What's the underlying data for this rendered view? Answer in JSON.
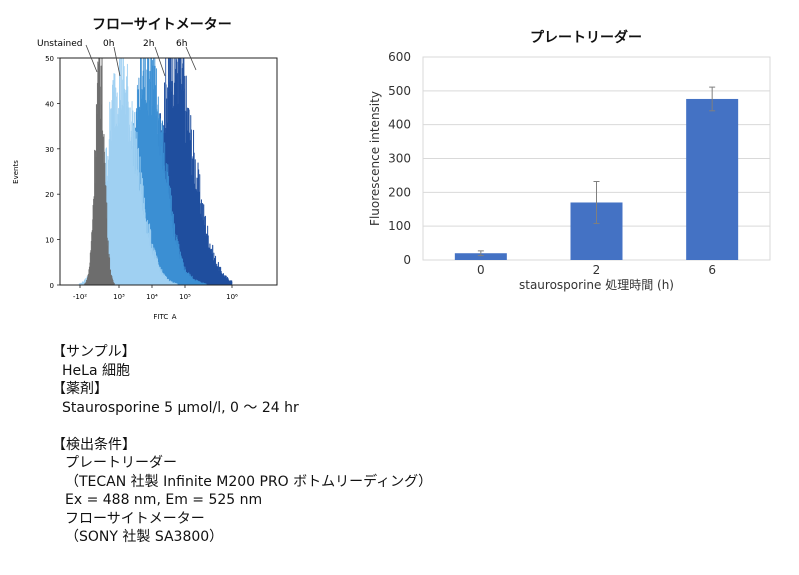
{
  "flow": {
    "title": "フローサイトメーター",
    "peak_labels": [
      "Unstained",
      "0h",
      "2h",
      "6h"
    ],
    "y_axis_label": "Events",
    "x_axis_label": "FITC_A",
    "y_ticks": [
      "0",
      "10",
      "20",
      "30",
      "40",
      "50"
    ],
    "x_ticks": [
      "-10²",
      "10³",
      "10⁴",
      "10⁵",
      "10⁶"
    ],
    "colors": {
      "Unstained": "#6d6d6d",
      "0h": "#9fd0f2",
      "2h": "#3b8fd3",
      "6h": "#1f4e9e"
    }
  },
  "plate": {
    "title": "プレートリーダー",
    "ylabel": "Fluorescence intensity",
    "xlabel": "staurosporine 処理時間 (h)"
  },
  "chart_data": [
    {
      "type": "area",
      "title": "フローサイトメーター",
      "xlabel": "FITC_A",
      "ylabel": "Events",
      "x_scale": "log",
      "x_ticks": [
        "-10²",
        "10³",
        "10⁴",
        "10⁵",
        "10⁶"
      ],
      "ylim": [
        0,
        50
      ],
      "series": [
        {
          "name": "Unstained",
          "color": "#6d6d6d",
          "peak_log10": 2.5,
          "peak_events": 47
        },
        {
          "name": "0h",
          "color": "#9fd0f2",
          "peak_log10": 3.0,
          "peak_events": 45
        },
        {
          "name": "2h",
          "color": "#3b8fd3",
          "peak_log10": 3.85,
          "peak_events": 48
        },
        {
          "name": "6h",
          "color": "#1f4e9e",
          "peak_log10": 4.7,
          "peak_events": 50
        }
      ]
    },
    {
      "type": "bar",
      "title": "プレートリーダー",
      "categories": [
        "0",
        "2",
        "6"
      ],
      "values": [
        20,
        170,
        476
      ],
      "errors": [
        7,
        62,
        35
      ],
      "xlabel": "staurosporine 処理時間 (h)",
      "ylabel": "Fluorescence intensity",
      "ylim": [
        0,
        600
      ],
      "y_ticks": [
        0,
        100,
        200,
        300,
        400,
        500,
        600
      ],
      "grid": true,
      "bar_color": "#4472c4"
    }
  ],
  "info": {
    "sample_header": "【サンプル】",
    "sample": "HeLa 細胞",
    "drug_header": "【薬剤】",
    "drug": "Staurosporine 5 µmol/l, 0 ～ 24 hr",
    "cond_header": "【検出条件】",
    "cond_lines": [
      "プレートリーダー",
      "（TECAN 社製 Infinite M200 PRO ボトムリーディング）",
      "Ex = 488 nm, Em = 525 nm",
      "フローサイトメーター",
      "（SONY 社製 SA3800）"
    ]
  }
}
